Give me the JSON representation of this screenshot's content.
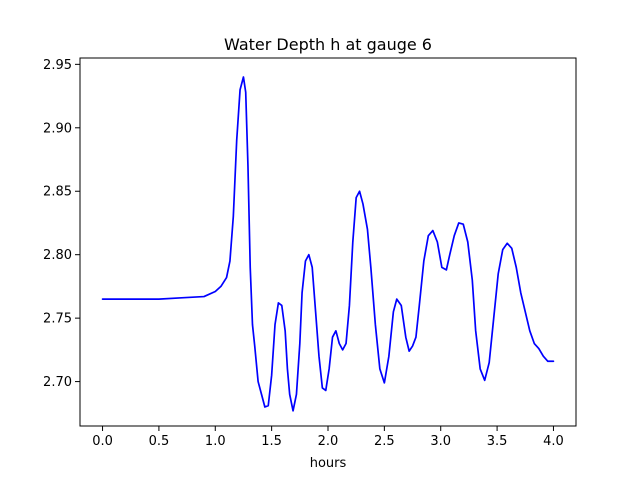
{
  "chart_data": {
    "type": "line",
    "title": "Water Depth h at gauge 6",
    "xlabel": "hours",
    "ylabel": "",
    "xlim": [
      -0.2,
      4.2
    ],
    "ylim": [
      2.665,
      2.955
    ],
    "xticks": [
      0.0,
      0.5,
      1.0,
      1.5,
      2.0,
      2.5,
      3.0,
      3.5,
      4.0
    ],
    "xtick_labels": [
      "0.0",
      "0.5",
      "1.0",
      "1.5",
      "2.0",
      "2.5",
      "3.0",
      "3.5",
      "4.0"
    ],
    "yticks": [
      2.7,
      2.75,
      2.8,
      2.85,
      2.9,
      2.95
    ],
    "ytick_labels": [
      "2.70",
      "2.75",
      "2.80",
      "2.85",
      "2.90",
      "2.95"
    ],
    "grid": false,
    "series": [
      {
        "color": "#0000ff",
        "x": [
          0.0,
          0.3,
          0.5,
          0.7,
          0.9,
          1.0,
          1.05,
          1.1,
          1.13,
          1.16,
          1.19,
          1.22,
          1.25,
          1.27,
          1.29,
          1.31,
          1.33,
          1.35,
          1.38,
          1.41,
          1.44,
          1.47,
          1.5,
          1.53,
          1.56,
          1.59,
          1.62,
          1.64,
          1.66,
          1.69,
          1.72,
          1.75,
          1.77,
          1.8,
          1.83,
          1.86,
          1.89,
          1.92,
          1.95,
          1.98,
          2.01,
          2.04,
          2.07,
          2.1,
          2.13,
          2.16,
          2.19,
          2.22,
          2.25,
          2.28,
          2.31,
          2.35,
          2.38,
          2.42,
          2.46,
          2.5,
          2.54,
          2.58,
          2.61,
          2.65,
          2.69,
          2.72,
          2.75,
          2.78,
          2.81,
          2.85,
          2.89,
          2.93,
          2.97,
          3.01,
          3.05,
          3.08,
          3.12,
          3.16,
          3.2,
          3.24,
          3.28,
          3.31,
          3.35,
          3.39,
          3.43,
          3.47,
          3.51,
          3.55,
          3.59,
          3.63,
          3.67,
          3.71,
          3.75,
          3.79,
          3.83,
          3.87,
          3.91,
          3.95,
          4.0
        ],
        "values": [
          2.765,
          2.765,
          2.765,
          2.766,
          2.767,
          2.771,
          2.775,
          2.782,
          2.795,
          2.83,
          2.89,
          2.93,
          2.94,
          2.928,
          2.87,
          2.79,
          2.745,
          2.728,
          2.7,
          2.69,
          2.68,
          2.681,
          2.705,
          2.745,
          2.762,
          2.76,
          2.74,
          2.71,
          2.69,
          2.677,
          2.69,
          2.73,
          2.77,
          2.795,
          2.8,
          2.79,
          2.755,
          2.72,
          2.695,
          2.693,
          2.71,
          2.735,
          2.74,
          2.73,
          2.725,
          2.73,
          2.76,
          2.81,
          2.845,
          2.85,
          2.84,
          2.82,
          2.79,
          2.745,
          2.71,
          2.699,
          2.72,
          2.755,
          2.765,
          2.76,
          2.735,
          2.724,
          2.728,
          2.735,
          2.76,
          2.795,
          2.815,
          2.819,
          2.81,
          2.79,
          2.788,
          2.8,
          2.815,
          2.825,
          2.824,
          2.81,
          2.78,
          2.74,
          2.71,
          2.701,
          2.715,
          2.75,
          2.785,
          2.804,
          2.809,
          2.805,
          2.79,
          2.77,
          2.755,
          2.74,
          2.73,
          2.726,
          2.72,
          2.716,
          2.716
        ]
      }
    ]
  }
}
